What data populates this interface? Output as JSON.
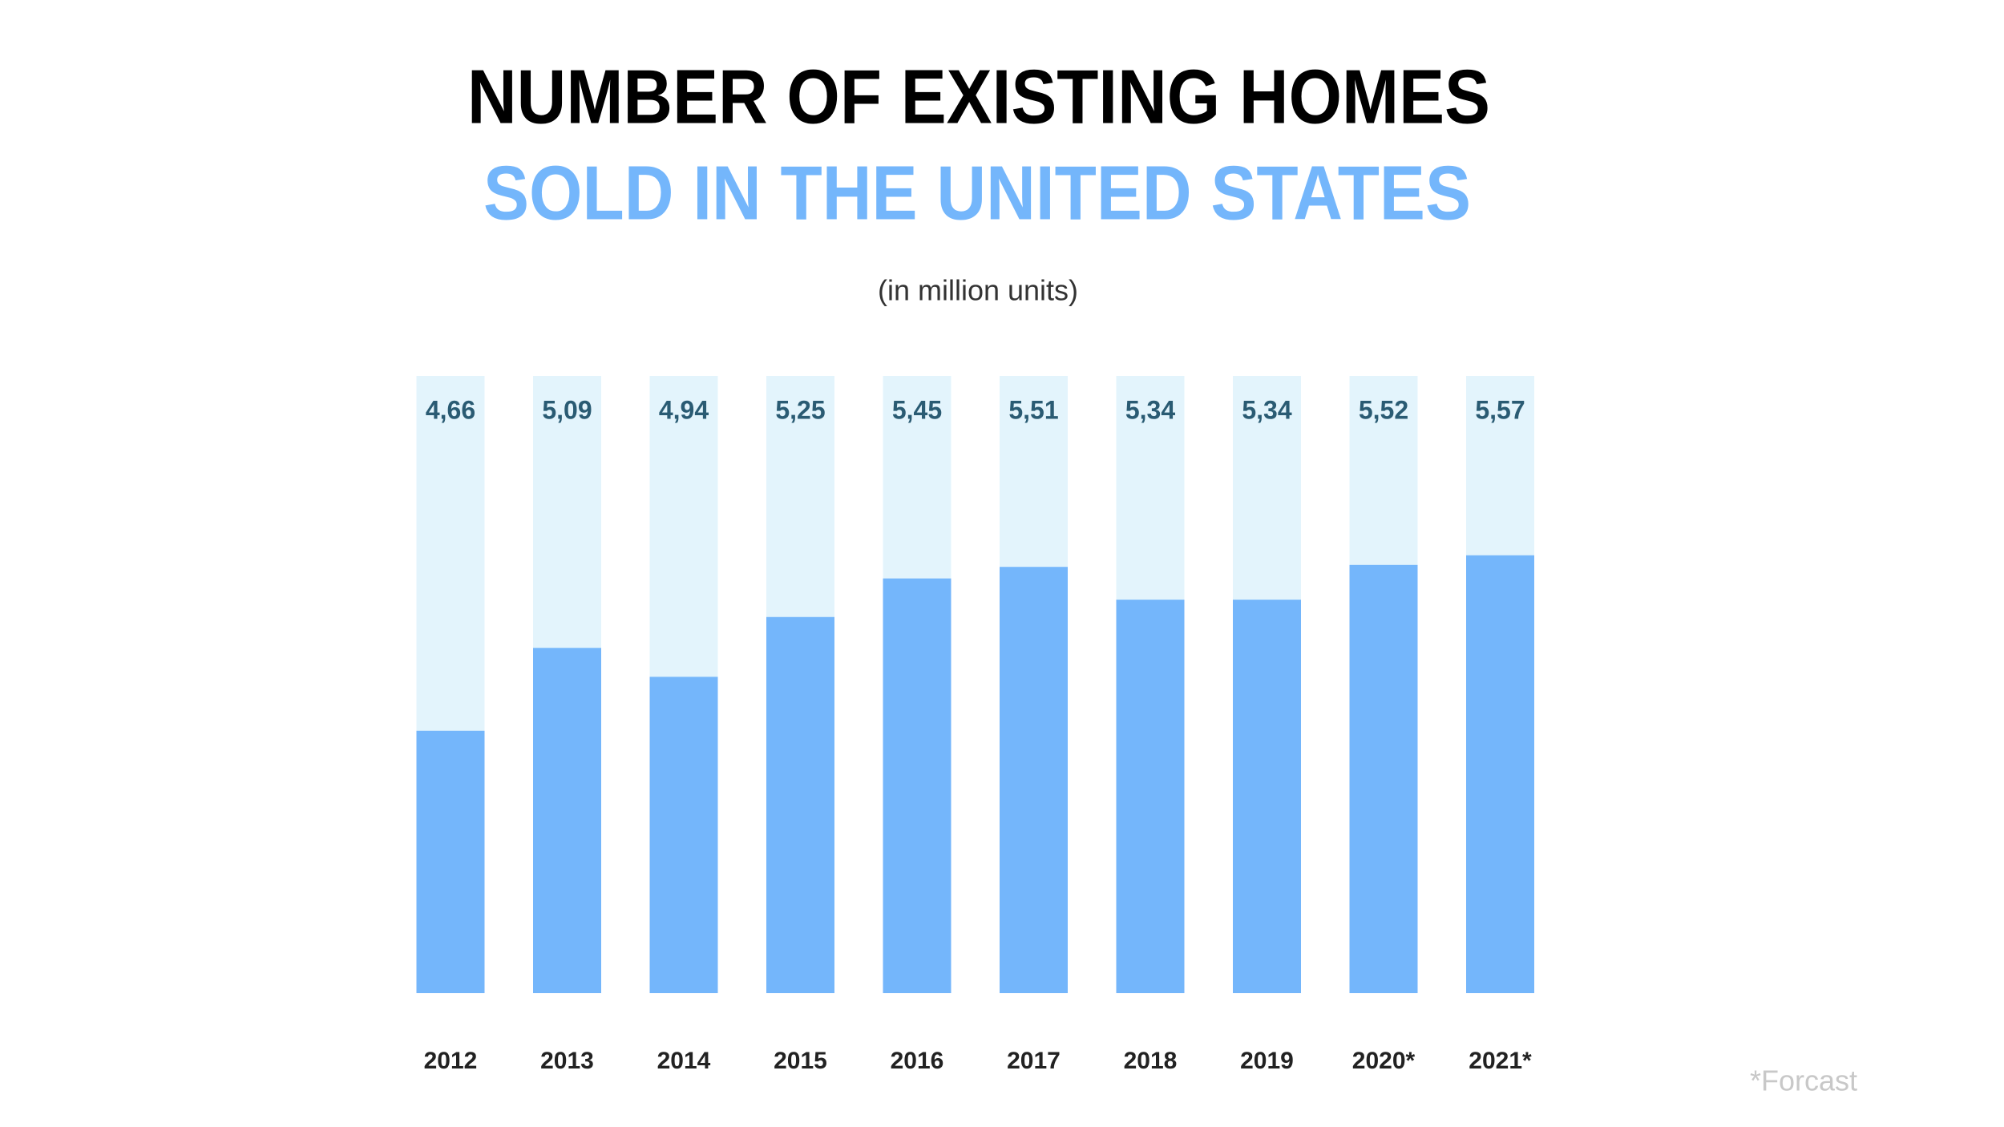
{
  "chart_data": {
    "type": "bar",
    "title": "NUMBER OF EXISTING HOMES",
    "subtitle": "SOLD IN THE UNITED STATES",
    "unit_note": "(in million units)",
    "footnote": "*Forcast",
    "categories": [
      "2012",
      "2013",
      "2014",
      "2015",
      "2016",
      "2017",
      "2018",
      "2019",
      "2020*",
      "2021*"
    ],
    "values": [
      4.66,
      5.09,
      4.94,
      5.25,
      5.45,
      5.51,
      5.34,
      5.34,
      5.52,
      5.57
    ],
    "value_labels": [
      "4,66",
      "5,09",
      "4,94",
      "5,25",
      "5,45",
      "5,51",
      "5,34",
      "5,34",
      "5,52",
      "5,57"
    ],
    "color": "#74b6fb",
    "track_color": "#e3f4fc",
    "title_color": "#000000",
    "subtitle_color": "#74b6fb",
    "ylim": [
      3.3,
      6.5
    ]
  }
}
